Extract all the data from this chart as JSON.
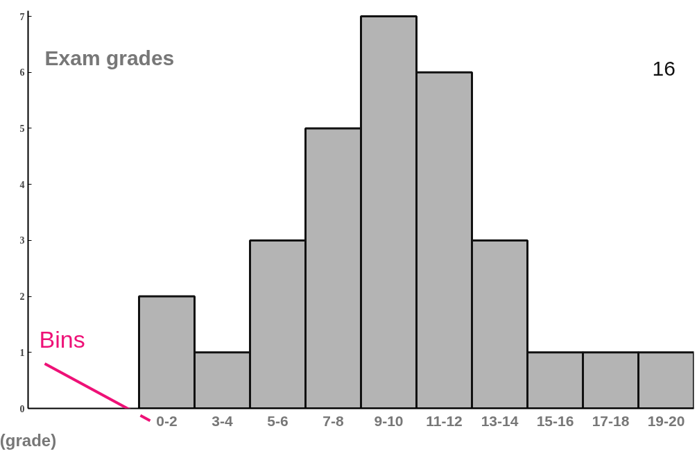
{
  "chart_data": {
    "type": "bar",
    "title": "Exam grades",
    "xlabel": "(grade)",
    "categories": [
      null,
      null,
      "0-2",
      "3-4",
      "5-6",
      "7-8",
      "9-10",
      "11-12",
      "13-14",
      "15-16",
      "17-18",
      "19-20"
    ],
    "values": [
      null,
      null,
      2,
      1,
      3,
      5,
      7,
      6,
      3,
      1,
      1,
      1
    ],
    "color": "#b4b4b4",
    "ylim": [
      0,
      7.1
    ],
    "yticks": [
      0,
      1,
      2,
      3,
      4,
      5,
      6,
      7
    ],
    "grid": false,
    "annotations": [
      "Bins",
      "16"
    ]
  }
}
